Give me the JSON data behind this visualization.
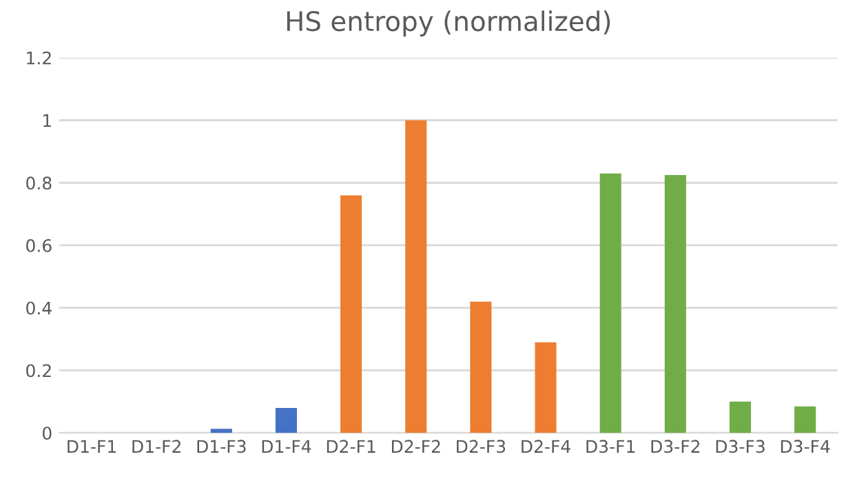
{
  "chart_data": {
    "type": "bar",
    "title": "HS entropy (normalized)",
    "categories": [
      "D1-F1",
      "D1-F2",
      "D1-F3",
      "D1-F4",
      "D2-F1",
      "D2-F2",
      "D2-F3",
      "D2-F4",
      "D3-F1",
      "D3-F2",
      "D3-F3",
      "D3-F4"
    ],
    "values": [
      0,
      0,
      0.013,
      0.08,
      0.76,
      1.0,
      0.42,
      0.29,
      0.83,
      0.825,
      0.1,
      0.085
    ],
    "colors": [
      "#4472c4",
      "#4472c4",
      "#4472c4",
      "#4472c4",
      "#ed7d31",
      "#ed7d31",
      "#ed7d31",
      "#ed7d31",
      "#70ad47",
      "#70ad47",
      "#70ad47",
      "#70ad47"
    ],
    "ylim": [
      0,
      1.2
    ],
    "yticks": [
      0,
      {
        "value": 0.2,
        "label": "0.2"
      },
      {
        "value": 0.4,
        "label": "0.4"
      },
      {
        "value": 0.6,
        "label": "0.6"
      },
      {
        "value": 0.8,
        "label": "0.8"
      },
      1,
      {
        "value": 1.2,
        "label": "1.2"
      }
    ],
    "grid": "y",
    "legend": false
  }
}
